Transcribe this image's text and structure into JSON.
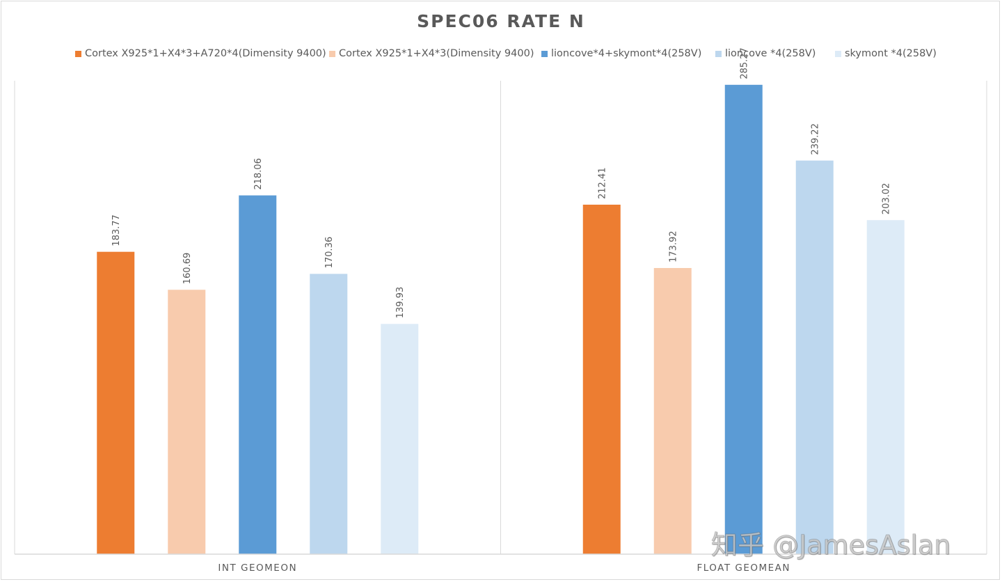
{
  "chart_data": {
    "type": "bar",
    "title": "SPEC06  RATE  N",
    "xlabel": "",
    "ylabel": "",
    "ylim": [
      0,
      300
    ],
    "grid": false,
    "legend_position": "top",
    "categories": [
      "INT GEOMEON",
      "FLOAT GEOMEAN"
    ],
    "series": [
      {
        "name": "Cortex X925*1+X4*3+A720*4(Dimensity 9400)",
        "color": "#ED7D31",
        "values": [
          183.77,
          212.41
        ],
        "labels": [
          "183.77",
          "212.41"
        ]
      },
      {
        "name": "Cortex X925*1+X4*3(Dimensity 9400)",
        "color": "#F8CBAD",
        "values": [
          160.69,
          173.92
        ],
        "labels": [
          "160.69",
          "173.92"
        ]
      },
      {
        "name": "lioncove*4+skymont*4(258V)",
        "color": "#5B9BD5",
        "values": [
          218.06,
          285.27
        ],
        "labels": [
          "218.06",
          "285.27"
        ]
      },
      {
        "name": "lioncove *4(258V)",
        "color": "#BDD7EE",
        "values": [
          170.36,
          239.22
        ],
        "labels": [
          "170.36",
          "239.22"
        ]
      },
      {
        "name": "skymont *4(258V)",
        "color": "#DDEBF7",
        "values": [
          139.93,
          203.02
        ],
        "labels": [
          "139.93",
          "203.02"
        ]
      }
    ]
  },
  "watermark": "知乎 @JamesAslan"
}
